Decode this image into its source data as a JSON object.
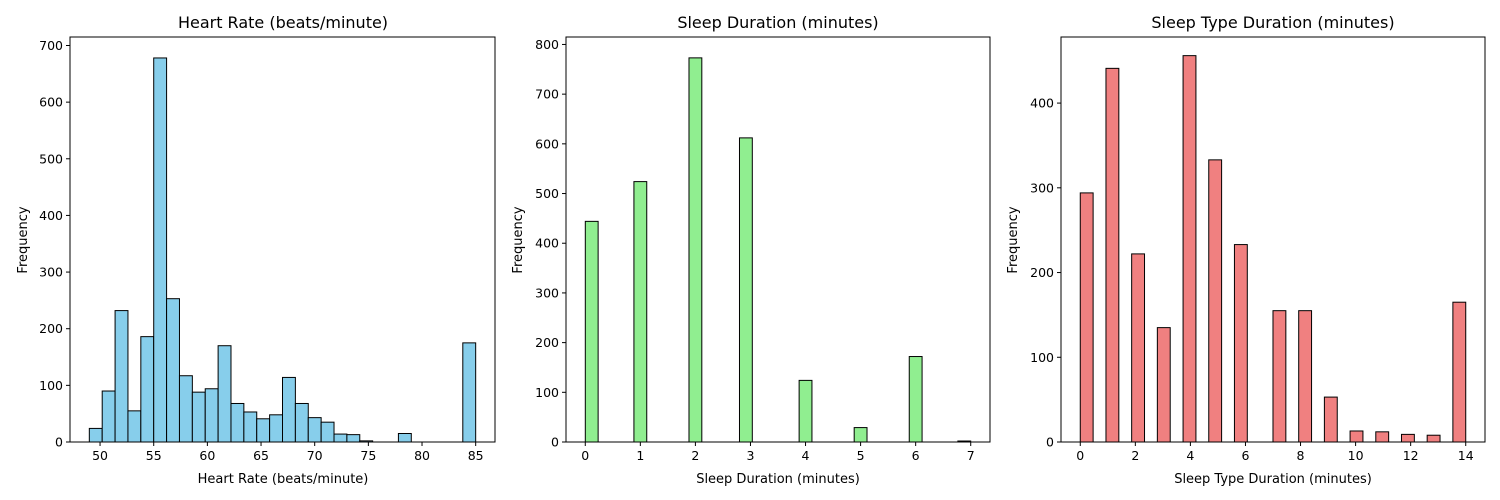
{
  "chart_data": [
    {
      "type": "bar",
      "title": "Heart Rate (beats/minute)",
      "xlabel": "Heart Rate (beats/minute)",
      "ylabel": "Frequency",
      "color": "#87ceeb",
      "xlim": [
        47.2,
        86.8
      ],
      "ylim": [
        0,
        715
      ],
      "xticks": [
        50,
        55,
        60,
        65,
        70,
        75,
        80,
        85
      ],
      "yticks": [
        0,
        100,
        200,
        300,
        400,
        500,
        600,
        700
      ],
      "bar_width": 1.2,
      "x": [
        49.6,
        50.8,
        52.0,
        53.2,
        54.4,
        55.6,
        56.8,
        58.0,
        59.2,
        60.4,
        61.6,
        62.8,
        64.0,
        65.2,
        66.4,
        67.6,
        68.8,
        70.0,
        71.2,
        72.4,
        73.6,
        74.8,
        78.4,
        84.4
      ],
      "values": [
        24,
        90,
        232,
        55,
        186,
        678,
        253,
        117,
        88,
        94,
        170,
        68,
        53,
        41,
        48,
        114,
        68,
        43,
        35,
        14,
        13,
        2,
        15,
        175
      ]
    },
    {
      "type": "bar",
      "title": "Sleep Duration (minutes)",
      "xlabel": "Sleep Duration (minutes)",
      "ylabel": "Frequency",
      "color": "#90ee90",
      "xlim": [
        -0.35,
        7.35
      ],
      "ylim": [
        0,
        815
      ],
      "xticks": [
        0,
        1,
        2,
        3,
        4,
        5,
        6,
        7
      ],
      "yticks": [
        0,
        100,
        200,
        300,
        400,
        500,
        600,
        700,
        800
      ],
      "bar_width": 0.233,
      "x": [
        0.117,
        1.0,
        2.0,
        2.917,
        4.0,
        5.0,
        6.0,
        6.883
      ],
      "values": [
        444,
        524,
        773,
        612,
        124,
        29,
        172,
        2
      ]
    },
    {
      "type": "bar",
      "title": "Sleep Type Duration (minutes)",
      "xlabel": "Sleep Type Duration (minutes)",
      "ylabel": "Frequency",
      "color": "#f08080",
      "xlim": [
        -0.7,
        14.7
      ],
      "ylim": [
        0,
        478
      ],
      "xticks": [
        0,
        2,
        4,
        6,
        8,
        10,
        12,
        14
      ],
      "yticks": [
        0,
        100,
        200,
        300,
        400
      ],
      "bar_width": 0.467,
      "x": [
        0.233,
        1.167,
        2.1,
        3.033,
        3.967,
        4.9,
        5.833,
        7.233,
        8.167,
        9.1,
        10.033,
        10.967,
        11.9,
        12.833,
        13.767
      ],
      "values": [
        294,
        441,
        222,
        135,
        456,
        333,
        233,
        155,
        155,
        53,
        13,
        12,
        9,
        8,
        165
      ]
    }
  ]
}
